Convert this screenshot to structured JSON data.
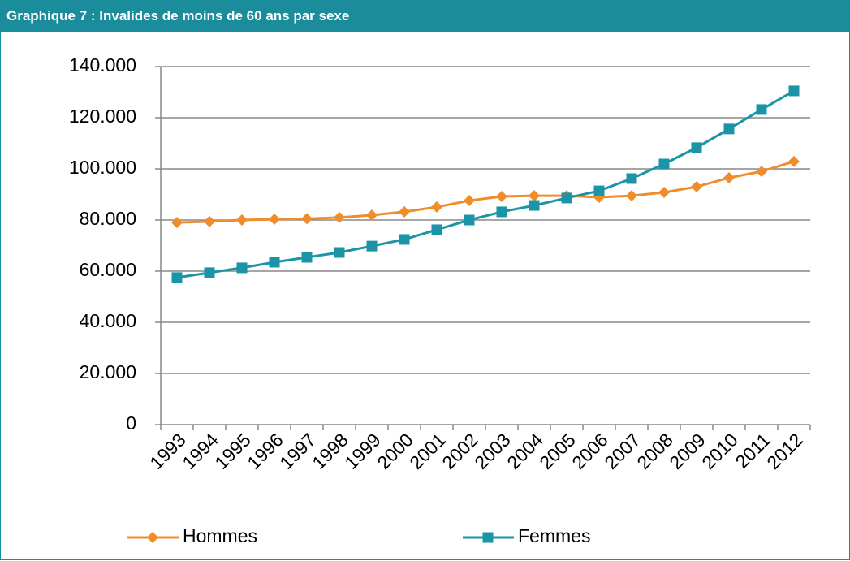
{
  "chart_data": {
    "type": "line",
    "title": "Graphique 7 : Invalides de moins de 60 ans par sexe",
    "categories": [
      "1993",
      "1994",
      "1995",
      "1996",
      "1997",
      "1998",
      "1999",
      "2000",
      "2001",
      "2002",
      "2003",
      "2004",
      "2005",
      "2006",
      "2007",
      "2008",
      "2009",
      "2010",
      "2011",
      "2012"
    ],
    "series": [
      {
        "name": "Hommes",
        "color": "#f08c2a",
        "marker": "diamond",
        "values": [
          79000,
          79400,
          80000,
          80300,
          80500,
          81000,
          81900,
          83200,
          85100,
          87600,
          89200,
          89500,
          89500,
          88900,
          89500,
          90800,
          93000,
          96500,
          99000,
          102900
        ]
      },
      {
        "name": "Femmes",
        "color": "#1a94a6",
        "marker": "square",
        "values": [
          57500,
          59400,
          61300,
          63500,
          65400,
          67300,
          69800,
          72400,
          76200,
          80000,
          83200,
          85700,
          88600,
          91400,
          96200,
          101900,
          108300,
          115600,
          123200,
          130500
        ]
      }
    ],
    "ylim": [
      0,
      140000
    ],
    "yticks": [
      0,
      {
        "value": 20000,
        "label": "20.000"
      },
      {
        "value": 40000,
        "label": "40.000"
      },
      {
        "value": 60000,
        "label": "60.000"
      },
      {
        "value": 80000,
        "label": "80.000"
      },
      {
        "value": 100000,
        "label": "100.000"
      },
      {
        "value": 120000,
        "label": "120.000"
      },
      {
        "value": 140000,
        "label": "140.000"
      }
    ],
    "grid": true,
    "legend": "bottom"
  }
}
